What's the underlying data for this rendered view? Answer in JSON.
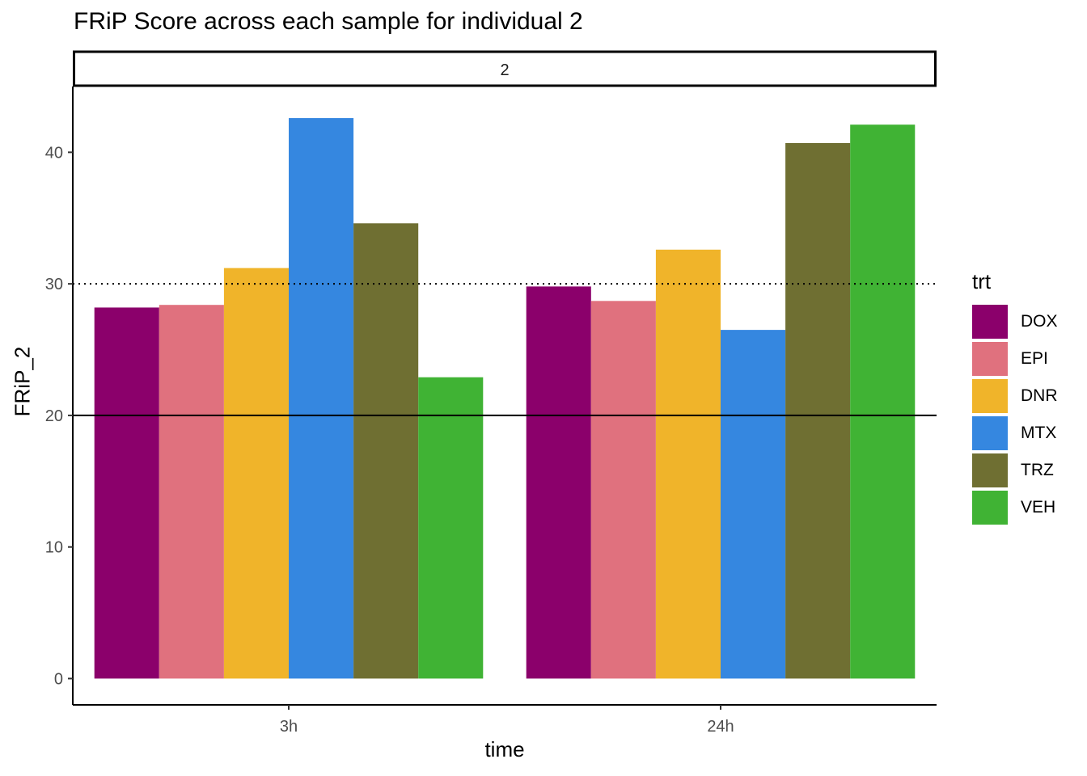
{
  "chart_data": {
    "type": "bar",
    "title": "FRiP Score across each sample for individual 2",
    "facet_label": "2",
    "xlabel": "time",
    "ylabel": "FRiP_2",
    "categories": [
      "3h",
      "24h"
    ],
    "ylim": [
      -2,
      45
    ],
    "yticks": [
      0,
      10,
      20,
      30,
      40
    ],
    "grid": false,
    "reference_lines": [
      {
        "value": 30,
        "style": "dotted"
      },
      {
        "value": 20,
        "style": "solid"
      }
    ],
    "legend": {
      "title": "trt",
      "placement": "right"
    },
    "series": [
      {
        "name": "DOX",
        "color": "#8B006B",
        "values": [
          28.2,
          29.8
        ]
      },
      {
        "name": "EPI",
        "color": "#E0717E",
        "values": [
          28.4,
          28.7
        ]
      },
      {
        "name": "DNR",
        "color": "#F0B42A",
        "values": [
          31.2,
          32.6
        ]
      },
      {
        "name": "MTX",
        "color": "#3587E0",
        "values": [
          42.6,
          26.5
        ]
      },
      {
        "name": "TRZ",
        "color": "#6F6F32",
        "values": [
          34.6,
          40.7
        ]
      },
      {
        "name": "VEH",
        "color": "#40B334",
        "values": [
          22.9,
          42.1
        ]
      }
    ]
  }
}
